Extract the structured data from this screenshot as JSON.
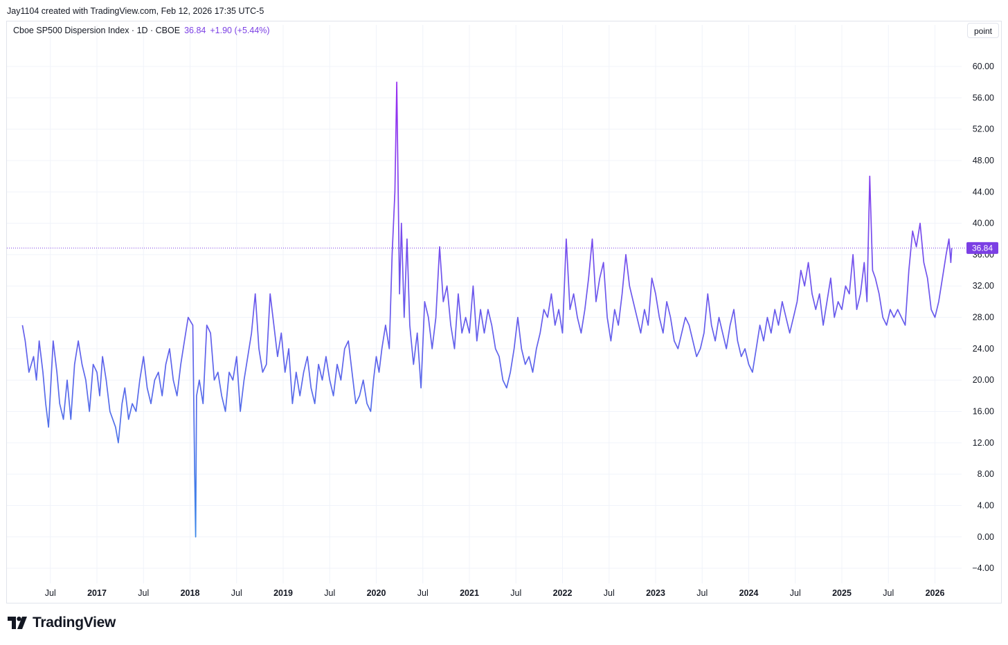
{
  "attribution": "Jay1104 created with TradingView.com, Feb 12, 2026 17:35 UTC-5",
  "legend": {
    "symbol": "Cboe SP500 Dispersion Index · 1D · CBOE",
    "last": "36.84",
    "change": "+1.90 (+5.44%)"
  },
  "unit_button": "point",
  "brand": "TradingView",
  "colors": {
    "line_start": "#3a86e8",
    "line_end": "#9a2cf0",
    "accent": "#7b3fe4",
    "grid": "#f0f3fa"
  },
  "chart_data": {
    "type": "line",
    "title": "Cboe SP500 Dispersion Index · 1D · CBOE",
    "xlabel": "",
    "ylabel": "point",
    "ylim": [
      -6,
      64
    ],
    "xlim": [
      2016.2,
      2026.45
    ],
    "y_ticks": [
      "60.00",
      "56.00",
      "52.00",
      "48.00",
      "44.00",
      "40.00",
      "36.00",
      "32.00",
      "28.00",
      "24.00",
      "20.00",
      "16.00",
      "12.00",
      "8.00",
      "4.00",
      "0.00",
      "−4.00"
    ],
    "x_ticks": [
      {
        "label": "Jul",
        "x": 2016.5,
        "bold": false
      },
      {
        "label": "2017",
        "x": 2017.0,
        "bold": true
      },
      {
        "label": "Jul",
        "x": 2017.5,
        "bold": false
      },
      {
        "label": "2018",
        "x": 2018.0,
        "bold": true
      },
      {
        "label": "Jul",
        "x": 2018.5,
        "bold": false
      },
      {
        "label": "2019",
        "x": 2019.0,
        "bold": true
      },
      {
        "label": "Jul",
        "x": 2019.5,
        "bold": false
      },
      {
        "label": "2020",
        "x": 2020.0,
        "bold": true
      },
      {
        "label": "Jul",
        "x": 2020.5,
        "bold": false
      },
      {
        "label": "2021",
        "x": 2021.0,
        "bold": true
      },
      {
        "label": "Jul",
        "x": 2021.5,
        "bold": false
      },
      {
        "label": "2022",
        "x": 2022.0,
        "bold": true
      },
      {
        "label": "Jul",
        "x": 2022.5,
        "bold": false
      },
      {
        "label": "2023",
        "x": 2023.0,
        "bold": true
      },
      {
        "label": "Jul",
        "x": 2023.5,
        "bold": false
      },
      {
        "label": "2024",
        "x": 2024.0,
        "bold": true
      },
      {
        "label": "Jul",
        "x": 2024.5,
        "bold": false
      },
      {
        "label": "2025",
        "x": 2025.0,
        "bold": true
      },
      {
        "label": "Jul",
        "x": 2025.5,
        "bold": false
      },
      {
        "label": "2026",
        "x": 2026.0,
        "bold": true
      }
    ],
    "last_value": 36.84,
    "last_value_label": "36.84",
    "series": [
      {
        "name": "Cboe SP500 Dispersion Index",
        "points": [
          [
            2016.2,
            27
          ],
          [
            2016.23,
            25
          ],
          [
            2016.27,
            21
          ],
          [
            2016.32,
            23
          ],
          [
            2016.35,
            20
          ],
          [
            2016.38,
            25
          ],
          [
            2016.42,
            21
          ],
          [
            2016.45,
            17
          ],
          [
            2016.48,
            14
          ],
          [
            2016.53,
            25
          ],
          [
            2016.57,
            21
          ],
          [
            2016.6,
            17
          ],
          [
            2016.64,
            15
          ],
          [
            2016.68,
            20
          ],
          [
            2016.72,
            15
          ],
          [
            2016.76,
            22
          ],
          [
            2016.8,
            25
          ],
          [
            2016.84,
            22
          ],
          [
            2016.88,
            20
          ],
          [
            2016.92,
            16
          ],
          [
            2016.96,
            22
          ],
          [
            2017.0,
            21
          ],
          [
            2017.03,
            18
          ],
          [
            2017.06,
            23
          ],
          [
            2017.1,
            20
          ],
          [
            2017.14,
            16
          ],
          [
            2017.17,
            15
          ],
          [
            2017.2,
            14
          ],
          [
            2017.23,
            12
          ],
          [
            2017.27,
            17
          ],
          [
            2017.3,
            19
          ],
          [
            2017.34,
            15
          ],
          [
            2017.38,
            17
          ],
          [
            2017.42,
            16
          ],
          [
            2017.46,
            20
          ],
          [
            2017.5,
            23
          ],
          [
            2017.54,
            19
          ],
          [
            2017.58,
            17
          ],
          [
            2017.62,
            20
          ],
          [
            2017.66,
            21
          ],
          [
            2017.7,
            18
          ],
          [
            2017.74,
            22
          ],
          [
            2017.78,
            24
          ],
          [
            2017.82,
            20
          ],
          [
            2017.86,
            18
          ],
          [
            2017.9,
            22
          ],
          [
            2017.94,
            25
          ],
          [
            2017.98,
            28
          ],
          [
            2018.03,
            27
          ],
          [
            2018.05,
            8
          ],
          [
            2018.06,
            0
          ],
          [
            2018.07,
            18
          ],
          [
            2018.1,
            20
          ],
          [
            2018.14,
            17
          ],
          [
            2018.18,
            27
          ],
          [
            2018.22,
            26
          ],
          [
            2018.26,
            20
          ],
          [
            2018.3,
            21
          ],
          [
            2018.34,
            18
          ],
          [
            2018.38,
            16
          ],
          [
            2018.42,
            21
          ],
          [
            2018.46,
            20
          ],
          [
            2018.5,
            23
          ],
          [
            2018.54,
            16
          ],
          [
            2018.58,
            20
          ],
          [
            2018.62,
            23
          ],
          [
            2018.66,
            26
          ],
          [
            2018.7,
            31
          ],
          [
            2018.74,
            24
          ],
          [
            2018.78,
            21
          ],
          [
            2018.82,
            22
          ],
          [
            2018.86,
            31
          ],
          [
            2018.9,
            27
          ],
          [
            2018.94,
            23
          ],
          [
            2018.98,
            26
          ],
          [
            2019.02,
            21
          ],
          [
            2019.06,
            24
          ],
          [
            2019.1,
            17
          ],
          [
            2019.14,
            21
          ],
          [
            2019.18,
            18
          ],
          [
            2019.22,
            21
          ],
          [
            2019.26,
            23
          ],
          [
            2019.3,
            19
          ],
          [
            2019.34,
            17
          ],
          [
            2019.38,
            22
          ],
          [
            2019.42,
            20
          ],
          [
            2019.46,
            23
          ],
          [
            2019.5,
            20
          ],
          [
            2019.54,
            18
          ],
          [
            2019.58,
            22
          ],
          [
            2019.62,
            20
          ],
          [
            2019.66,
            24
          ],
          [
            2019.7,
            25
          ],
          [
            2019.74,
            21
          ],
          [
            2019.78,
            17
          ],
          [
            2019.82,
            18
          ],
          [
            2019.86,
            20
          ],
          [
            2019.9,
            17
          ],
          [
            2019.94,
            16
          ],
          [
            2019.97,
            20
          ],
          [
            2020.0,
            23
          ],
          [
            2020.03,
            21
          ],
          [
            2020.06,
            24
          ],
          [
            2020.1,
            27
          ],
          [
            2020.14,
            24
          ],
          [
            2020.17,
            36
          ],
          [
            2020.2,
            44
          ],
          [
            2020.22,
            58
          ],
          [
            2020.25,
            31
          ],
          [
            2020.27,
            40
          ],
          [
            2020.3,
            28
          ],
          [
            2020.33,
            38
          ],
          [
            2020.36,
            27
          ],
          [
            2020.4,
            22
          ],
          [
            2020.44,
            26
          ],
          [
            2020.48,
            19
          ],
          [
            2020.52,
            30
          ],
          [
            2020.56,
            28
          ],
          [
            2020.6,
            24
          ],
          [
            2020.64,
            28
          ],
          [
            2020.68,
            37
          ],
          [
            2020.72,
            30
          ],
          [
            2020.76,
            32
          ],
          [
            2020.8,
            27
          ],
          [
            2020.84,
            24
          ],
          [
            2020.88,
            31
          ],
          [
            2020.92,
            26
          ],
          [
            2020.96,
            28
          ],
          [
            2021.0,
            26
          ],
          [
            2021.04,
            32
          ],
          [
            2021.08,
            25
          ],
          [
            2021.12,
            29
          ],
          [
            2021.16,
            26
          ],
          [
            2021.2,
            29
          ],
          [
            2021.24,
            27
          ],
          [
            2021.28,
            24
          ],
          [
            2021.32,
            23
          ],
          [
            2021.36,
            20
          ],
          [
            2021.4,
            19
          ],
          [
            2021.44,
            21
          ],
          [
            2021.48,
            24
          ],
          [
            2021.52,
            28
          ],
          [
            2021.56,
            24
          ],
          [
            2021.6,
            22
          ],
          [
            2021.64,
            23
          ],
          [
            2021.68,
            21
          ],
          [
            2021.72,
            24
          ],
          [
            2021.76,
            26
          ],
          [
            2021.8,
            29
          ],
          [
            2021.84,
            28
          ],
          [
            2021.88,
            31
          ],
          [
            2021.92,
            27
          ],
          [
            2021.96,
            29
          ],
          [
            2022.0,
            26
          ],
          [
            2022.04,
            38
          ],
          [
            2022.08,
            29
          ],
          [
            2022.12,
            31
          ],
          [
            2022.16,
            28
          ],
          [
            2022.2,
            26
          ],
          [
            2022.24,
            29
          ],
          [
            2022.28,
            33
          ],
          [
            2022.32,
            38
          ],
          [
            2022.36,
            30
          ],
          [
            2022.4,
            33
          ],
          [
            2022.44,
            35
          ],
          [
            2022.48,
            28
          ],
          [
            2022.52,
            25
          ],
          [
            2022.56,
            29
          ],
          [
            2022.6,
            27
          ],
          [
            2022.64,
            31
          ],
          [
            2022.68,
            36
          ],
          [
            2022.72,
            32
          ],
          [
            2022.76,
            30
          ],
          [
            2022.8,
            28
          ],
          [
            2022.84,
            26
          ],
          [
            2022.88,
            29
          ],
          [
            2022.92,
            27
          ],
          [
            2022.96,
            33
          ],
          [
            2023.0,
            31
          ],
          [
            2023.04,
            28
          ],
          [
            2023.08,
            26
          ],
          [
            2023.12,
            30
          ],
          [
            2023.16,
            28
          ],
          [
            2023.2,
            25
          ],
          [
            2023.24,
            24
          ],
          [
            2023.28,
            26
          ],
          [
            2023.32,
            28
          ],
          [
            2023.36,
            27
          ],
          [
            2023.4,
            25
          ],
          [
            2023.44,
            23
          ],
          [
            2023.48,
            24
          ],
          [
            2023.52,
            26
          ],
          [
            2023.56,
            31
          ],
          [
            2023.6,
            27
          ],
          [
            2023.64,
            25
          ],
          [
            2023.68,
            28
          ],
          [
            2023.72,
            26
          ],
          [
            2023.76,
            24
          ],
          [
            2023.8,
            27
          ],
          [
            2023.84,
            29
          ],
          [
            2023.88,
            25
          ],
          [
            2023.92,
            23
          ],
          [
            2023.96,
            24
          ],
          [
            2024.0,
            22
          ],
          [
            2024.04,
            21
          ],
          [
            2024.08,
            24
          ],
          [
            2024.12,
            27
          ],
          [
            2024.16,
            25
          ],
          [
            2024.2,
            28
          ],
          [
            2024.24,
            26
          ],
          [
            2024.28,
            29
          ],
          [
            2024.32,
            27
          ],
          [
            2024.36,
            30
          ],
          [
            2024.4,
            28
          ],
          [
            2024.44,
            26
          ],
          [
            2024.48,
            28
          ],
          [
            2024.52,
            30
          ],
          [
            2024.56,
            34
          ],
          [
            2024.6,
            32
          ],
          [
            2024.64,
            35
          ],
          [
            2024.68,
            31
          ],
          [
            2024.72,
            29
          ],
          [
            2024.76,
            31
          ],
          [
            2024.8,
            27
          ],
          [
            2024.84,
            30
          ],
          [
            2024.88,
            33
          ],
          [
            2024.92,
            28
          ],
          [
            2024.96,
            30
          ],
          [
            2025.0,
            29
          ],
          [
            2025.04,
            32
          ],
          [
            2025.08,
            31
          ],
          [
            2025.12,
            36
          ],
          [
            2025.16,
            29
          ],
          [
            2025.2,
            31
          ],
          [
            2025.24,
            35
          ],
          [
            2025.27,
            30
          ],
          [
            2025.3,
            46
          ],
          [
            2025.33,
            34
          ],
          [
            2025.36,
            33
          ],
          [
            2025.4,
            31
          ],
          [
            2025.44,
            28
          ],
          [
            2025.48,
            27
          ],
          [
            2025.52,
            29
          ],
          [
            2025.56,
            28
          ],
          [
            2025.6,
            29
          ],
          [
            2025.64,
            28
          ],
          [
            2025.68,
            27
          ],
          [
            2025.72,
            34
          ],
          [
            2025.76,
            39
          ],
          [
            2025.8,
            37
          ],
          [
            2025.84,
            40
          ],
          [
            2025.88,
            35
          ],
          [
            2025.92,
            33
          ],
          [
            2025.96,
            29
          ],
          [
            2026.0,
            28
          ],
          [
            2026.04,
            30
          ],
          [
            2026.08,
            33
          ],
          [
            2026.12,
            36
          ],
          [
            2026.15,
            38
          ],
          [
            2026.17,
            35
          ],
          [
            2026.18,
            36.84
          ]
        ]
      }
    ]
  }
}
